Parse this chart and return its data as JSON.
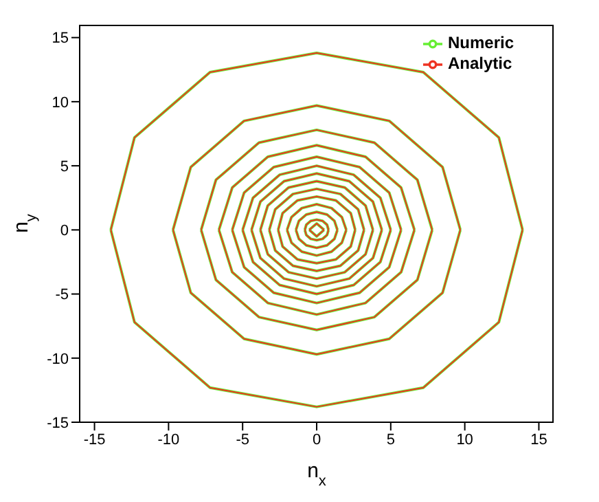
{
  "chart_data": {
    "type": "line",
    "xlabel": "n$_{x}$",
    "ylabel": "n$_{y}$",
    "xlim": [
      -16,
      16
    ],
    "ylim": [
      -15,
      16
    ],
    "xticks": [
      -15,
      -10,
      -5,
      0,
      5,
      10,
      15
    ],
    "yticks": [
      -15,
      -10,
      -5,
      0,
      5,
      10,
      15
    ],
    "grid": false,
    "legend": "top right",
    "marker": "none",
    "line_style": "solid",
    "series": [
      {
        "name": "Numeric",
        "color": "#66ee33",
        "x": [
          -13.9,
          -12.3,
          -7.2,
          0,
          7.2,
          12.3,
          13.9
        ],
        "values": [
          0,
          7.2,
          12.3,
          13.8,
          12.3,
          7.2,
          0
        ]
      },
      {
        "color": "#66ee33",
        "x": [
          -13.9,
          -12.3,
          -7.2,
          0,
          7.2,
          12.3,
          13.9
        ],
        "values": [
          0,
          -7.2,
          -12.3,
          -13.8,
          -12.3,
          -7.2,
          0
        ]
      },
      {
        "color": "#66ee33",
        "x": [
          -9.7,
          -8.5,
          -4.9,
          0,
          4.9,
          8.5,
          9.7
        ],
        "values": [
          0,
          4.9,
          8.5,
          9.7,
          8.5,
          4.9,
          0
        ]
      },
      {
        "color": "#66ee33",
        "x": [
          -9.7,
          -8.5,
          -4.9,
          0,
          4.9,
          8.5,
          9.7
        ],
        "values": [
          0,
          -4.9,
          -8.5,
          -9.7,
          -8.5,
          -4.9,
          0
        ]
      },
      {
        "color": "#66ee33",
        "x": [
          -7.8,
          -6.8,
          -3.9,
          0,
          3.9,
          6.8,
          7.8
        ],
        "values": [
          0,
          3.9,
          6.8,
          7.8,
          6.8,
          3.9,
          0
        ]
      },
      {
        "color": "#66ee33",
        "x": [
          -7.8,
          -6.8,
          -3.9,
          0,
          3.9,
          6.8,
          7.8
        ],
        "values": [
          0,
          -3.9,
          -6.8,
          -7.8,
          -6.8,
          -3.9,
          0
        ]
      },
      {
        "color": "#66ee33",
        "x": [
          -6.6,
          -5.7,
          -3.3,
          0,
          3.3,
          5.7,
          6.6
        ],
        "values": [
          0,
          3.3,
          5.7,
          6.6,
          5.7,
          3.3,
          0
        ]
      },
      {
        "color": "#66ee33",
        "x": [
          -6.6,
          -5.7,
          -3.3,
          0,
          3.3,
          5.7,
          6.6
        ],
        "values": [
          0,
          -3.3,
          -5.7,
          -6.6,
          -5.7,
          -3.3,
          0
        ]
      },
      {
        "color": "#66ee33",
        "x": [
          -5.7,
          -4.9,
          -2.9,
          0,
          2.9,
          4.9,
          5.7
        ],
        "values": [
          0,
          2.9,
          4.9,
          5.7,
          4.9,
          2.9,
          0
        ]
      },
      {
        "color": "#66ee33",
        "x": [
          -5.7,
          -4.9,
          -2.9,
          0,
          2.9,
          4.9,
          5.7
        ],
        "values": [
          0,
          -2.9,
          -4.9,
          -5.7,
          -4.9,
          -2.9,
          0
        ]
      },
      {
        "color": "#66ee33",
        "x": [
          -5.0,
          -4.3,
          -2.5,
          0,
          2.5,
          4.3,
          5.0
        ],
        "values": [
          0,
          2.5,
          4.3,
          5.0,
          4.3,
          2.5,
          0
        ]
      },
      {
        "color": "#66ee33",
        "x": [
          -5.0,
          -4.3,
          -2.5,
          0,
          2.5,
          4.3,
          5.0
        ],
        "values": [
          0,
          -2.5,
          -4.3,
          -5.0,
          -4.3,
          -2.5,
          0
        ]
      },
      {
        "color": "#66ee33",
        "x": [
          -4.4,
          -3.8,
          -2.2,
          0,
          2.2,
          3.8,
          4.4
        ],
        "values": [
          0,
          2.2,
          3.8,
          4.4,
          3.8,
          2.2,
          0
        ]
      },
      {
        "color": "#66ee33",
        "x": [
          -4.4,
          -3.8,
          -2.2,
          0,
          2.2,
          3.8,
          4.4
        ],
        "values": [
          0,
          -2.2,
          -3.8,
          -4.4,
          -3.8,
          -2.2,
          0
        ]
      },
      {
        "color": "#66ee33",
        "x": [
          -3.8,
          -3.3,
          -1.9,
          0,
          1.9,
          3.3,
          3.8
        ],
        "values": [
          0,
          1.9,
          3.3,
          3.8,
          3.3,
          1.9,
          0
        ]
      },
      {
        "color": "#66ee33",
        "x": [
          -3.8,
          -3.3,
          -1.9,
          0,
          1.9,
          3.3,
          3.8
        ],
        "values": [
          0,
          -1.9,
          -3.3,
          -3.8,
          -3.3,
          -1.9,
          0
        ]
      },
      {
        "color": "#66ee33",
        "x": [
          -3.2,
          -2.8,
          -1.6,
          0,
          1.6,
          2.8,
          3.2
        ],
        "values": [
          0,
          1.6,
          2.8,
          3.2,
          2.8,
          1.6,
          0
        ]
      },
      {
        "color": "#66ee33",
        "x": [
          -3.2,
          -2.8,
          -1.6,
          0,
          1.6,
          2.8,
          3.2
        ],
        "values": [
          0,
          -1.6,
          -2.8,
          -3.2,
          -2.8,
          -1.6,
          0
        ]
      },
      {
        "color": "#66ee33",
        "x": [
          -2.6,
          -2.3,
          -1.3,
          0,
          1.3,
          2.3,
          2.6
        ],
        "values": [
          0,
          1.3,
          2.3,
          2.6,
          2.3,
          1.3,
          0
        ]
      },
      {
        "color": "#66ee33",
        "x": [
          -2.6,
          -2.3,
          -1.3,
          0,
          1.3,
          2.3,
          2.6
        ],
        "values": [
          0,
          -1.3,
          -2.3,
          -2.6,
          -2.3,
          -1.3,
          0
        ]
      },
      {
        "color": "#66ee33",
        "x": [
          -2.0,
          -1.7,
          -1.0,
          0,
          1.0,
          1.7,
          2.0
        ],
        "values": [
          0,
          1.0,
          1.7,
          2.0,
          1.7,
          1.0,
          0
        ]
      },
      {
        "color": "#66ee33",
        "x": [
          -2.0,
          -1.7,
          -1.0,
          0,
          1.0,
          1.7,
          2.0
        ],
        "values": [
          0,
          -1.0,
          -1.7,
          -2.0,
          -1.7,
          -1.0,
          0
        ]
      },
      {
        "color": "#66ee33",
        "x": [
          -1.4,
          -1.2,
          -0.7,
          0,
          0.7,
          1.2,
          1.4
        ],
        "values": [
          0,
          0.7,
          1.2,
          1.4,
          1.2,
          0.7,
          0
        ]
      },
      {
        "color": "#66ee33",
        "x": [
          -1.4,
          -1.2,
          -0.7,
          0,
          0.7,
          1.2,
          1.4
        ],
        "values": [
          0,
          -0.7,
          -1.2,
          -1.4,
          -1.2,
          -0.7,
          0
        ]
      },
      {
        "color": "#66ee33",
        "x": [
          -0.8,
          -0.7,
          -0.4,
          0,
          0.4,
          0.7,
          0.8
        ],
        "values": [
          0,
          0.4,
          0.7,
          0.8,
          0.7,
          0.4,
          0
        ]
      },
      {
        "color": "#66ee33",
        "x": [
          -0.8,
          -0.7,
          -0.4,
          0,
          0.4,
          0.7,
          0.8
        ],
        "values": [
          0,
          -0.4,
          -0.7,
          -0.8,
          -0.7,
          -0.4,
          0
        ]
      },
      {
        "color": "#66ee33",
        "x": [
          -0.5,
          0,
          0.5
        ],
        "values": [
          0,
          0.5,
          0
        ]
      },
      {
        "color": "#66ee33",
        "x": [
          -0.5,
          0,
          0.5
        ],
        "values": [
          0,
          -0.5,
          0
        ]
      },
      {
        "name": "Analytic",
        "color": "#ee3322",
        "x": [
          -13.9,
          -12.3,
          -7.2,
          0,
          7.2,
          12.3,
          13.9
        ],
        "values": [
          0,
          7.2,
          12.3,
          13.8,
          12.3,
          7.2,
          0
        ]
      },
      {
        "color": "#ee3322",
        "x": [
          -13.9,
          -12.3,
          -7.2,
          0,
          7.2,
          12.3,
          13.9
        ],
        "values": [
          0,
          -7.2,
          -12.3,
          -13.8,
          -12.3,
          -7.2,
          0
        ]
      },
      {
        "color": "#ee3322",
        "x": [
          -9.7,
          -8.5,
          -4.9,
          0,
          4.9,
          8.5,
          9.7
        ],
        "values": [
          0,
          4.9,
          8.5,
          9.7,
          8.5,
          4.9,
          0
        ]
      },
      {
        "color": "#ee3322",
        "x": [
          -9.7,
          -8.5,
          -4.9,
          0,
          4.9,
          8.5,
          9.7
        ],
        "values": [
          0,
          -4.9,
          -8.5,
          -9.7,
          -8.5,
          -4.9,
          0
        ]
      },
      {
        "color": "#ee3322",
        "x": [
          -7.8,
          -6.8,
          -3.9,
          0,
          3.9,
          6.8,
          7.8
        ],
        "values": [
          0,
          3.9,
          6.8,
          7.8,
          6.8,
          3.9,
          0
        ]
      },
      {
        "color": "#ee3322",
        "x": [
          -7.8,
          -6.8,
          -3.9,
          0,
          3.9,
          6.8,
          7.8
        ],
        "values": [
          0,
          -3.9,
          -6.8,
          -7.8,
          -6.8,
          -3.9,
          0
        ]
      },
      {
        "color": "#ee3322",
        "x": [
          -6.6,
          -5.7,
          -3.3,
          0,
          3.3,
          5.7,
          6.6
        ],
        "values": [
          0,
          3.3,
          5.7,
          6.6,
          5.7,
          3.3,
          0
        ]
      },
      {
        "color": "#ee3322",
        "x": [
          -6.6,
          -5.7,
          -3.3,
          0,
          3.3,
          5.7,
          6.6
        ],
        "values": [
          0,
          -3.3,
          -5.7,
          -6.6,
          -5.7,
          -3.3,
          0
        ]
      },
      {
        "color": "#ee3322",
        "x": [
          -5.7,
          -4.9,
          -2.9,
          0,
          2.9,
          4.9,
          5.7
        ],
        "values": [
          0,
          2.9,
          4.9,
          5.7,
          4.9,
          2.9,
          0
        ]
      },
      {
        "color": "#ee3322",
        "x": [
          -5.7,
          -4.9,
          -2.9,
          0,
          2.9,
          4.9,
          5.7
        ],
        "values": [
          0,
          -2.9,
          -4.9,
          -5.7,
          -4.9,
          -2.9,
          0
        ]
      },
      {
        "color": "#ee3322",
        "x": [
          -5.0,
          -4.3,
          -2.5,
          0,
          2.5,
          4.3,
          5.0
        ],
        "values": [
          0,
          2.5,
          4.3,
          5.0,
          4.3,
          2.5,
          0
        ]
      },
      {
        "color": "#ee3322",
        "x": [
          -5.0,
          -4.3,
          -2.5,
          0,
          2.5,
          4.3,
          5.0
        ],
        "values": [
          0,
          -2.5,
          -4.3,
          -5.0,
          -4.3,
          -2.5,
          0
        ]
      },
      {
        "color": "#ee3322",
        "x": [
          -4.4,
          -3.8,
          -2.2,
          0,
          2.2,
          3.8,
          4.4
        ],
        "values": [
          0,
          2.2,
          3.8,
          4.4,
          3.8,
          2.2,
          0
        ]
      },
      {
        "color": "#ee3322",
        "x": [
          -4.4,
          -3.8,
          -2.2,
          0,
          2.2,
          3.8,
          4.4
        ],
        "values": [
          0,
          -2.2,
          -3.8,
          -4.4,
          -3.8,
          -2.2,
          0
        ]
      },
      {
        "color": "#ee3322",
        "x": [
          -3.8,
          -3.3,
          -1.9,
          0,
          1.9,
          3.3,
          3.8
        ],
        "values": [
          0,
          1.9,
          3.3,
          3.8,
          3.3,
          1.9,
          0
        ]
      },
      {
        "color": "#ee3322",
        "x": [
          -3.8,
          -3.3,
          -1.9,
          0,
          1.9,
          3.3,
          3.8
        ],
        "values": [
          0,
          -1.9,
          -3.3,
          -3.8,
          -3.3,
          -1.9,
          0
        ]
      },
      {
        "color": "#ee3322",
        "x": [
          -3.2,
          -2.8,
          -1.6,
          0,
          1.6,
          2.8,
          3.2
        ],
        "values": [
          0,
          1.6,
          2.8,
          3.2,
          2.8,
          1.6,
          0
        ]
      },
      {
        "color": "#ee3322",
        "x": [
          -3.2,
          -2.8,
          -1.6,
          0,
          1.6,
          2.8,
          3.2
        ],
        "values": [
          0,
          -1.6,
          -2.8,
          -3.2,
          -2.8,
          -1.6,
          0
        ]
      },
      {
        "color": "#ee3322",
        "x": [
          -2.6,
          -2.3,
          -1.3,
          0,
          1.3,
          2.3,
          2.6
        ],
        "values": [
          0,
          1.3,
          2.3,
          2.6,
          2.3,
          1.3,
          0
        ]
      },
      {
        "color": "#ee3322",
        "x": [
          -2.6,
          -2.3,
          -1.3,
          0,
          1.3,
          2.3,
          2.6
        ],
        "values": [
          0,
          -1.3,
          -2.3,
          -2.6,
          -2.3,
          -1.3,
          0
        ]
      },
      {
        "color": "#ee3322",
        "x": [
          -2.0,
          -1.7,
          -1.0,
          0,
          1.0,
          1.7,
          2.0
        ],
        "values": [
          0,
          1.0,
          1.7,
          2.0,
          1.7,
          1.0,
          0
        ]
      },
      {
        "color": "#ee3322",
        "x": [
          -2.0,
          -1.7,
          -1.0,
          0,
          1.0,
          1.7,
          2.0
        ],
        "values": [
          0,
          -1.0,
          -1.7,
          -2.0,
          -1.7,
          -1.0,
          0
        ]
      },
      {
        "color": "#ee3322",
        "x": [
          -1.4,
          -1.2,
          -0.7,
          0,
          0.7,
          1.2,
          1.4
        ],
        "values": [
          0,
          0.7,
          1.2,
          1.4,
          1.2,
          0.7,
          0
        ]
      },
      {
        "color": "#ee3322",
        "x": [
          -1.4,
          -1.2,
          -0.7,
          0,
          0.7,
          1.2,
          1.4
        ],
        "values": [
          0,
          -0.7,
          -1.2,
          -1.4,
          -1.2,
          -0.7,
          0
        ]
      },
      {
        "color": "#ee3322",
        "x": [
          -0.8,
          -0.7,
          -0.4,
          0,
          0.4,
          0.7,
          0.8
        ],
        "values": [
          0,
          0.4,
          0.7,
          0.8,
          0.7,
          0.4,
          0
        ]
      },
      {
        "color": "#ee3322",
        "x": [
          -0.8,
          -0.7,
          -0.4,
          0,
          0.4,
          0.7,
          0.8
        ],
        "values": [
          0,
          -0.4,
          -0.7,
          -0.8,
          -0.7,
          -0.4,
          0
        ]
      },
      {
        "color": "#ee3322",
        "x": [
          -0.5,
          0,
          0.5
        ],
        "values": [
          0,
          0.5,
          0
        ]
      },
      {
        "color": "#ee3322",
        "x": [
          -0.5,
          0,
          0.5
        ],
        "values": [
          0,
          -0.5,
          0
        ]
      }
    ]
  }
}
